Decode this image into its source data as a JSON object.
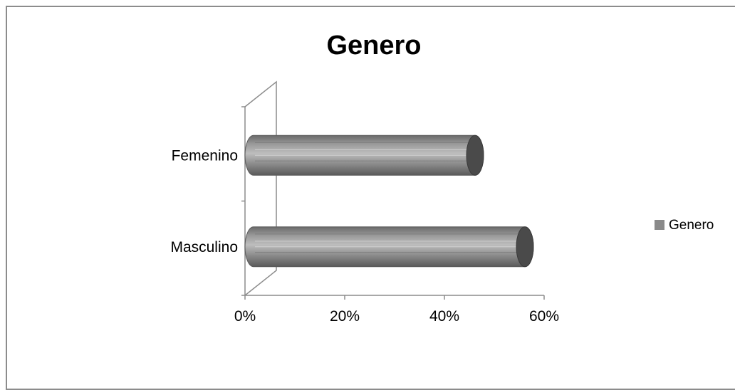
{
  "chart_data": {
    "type": "bar",
    "orientation": "horizontal",
    "style": "3d-cylinder",
    "title": "Genero",
    "categories": [
      "Masculino",
      "Femenino"
    ],
    "series": [
      {
        "name": "Genero",
        "values": [
          0.57,
          0.47
        ],
        "color": "#8a8a8a"
      }
    ],
    "x_ticks": [
      "0%",
      "20%",
      "40%",
      "60%"
    ],
    "xlim": [
      0,
      0.6
    ],
    "xlabel": "",
    "ylabel": "",
    "grid": false,
    "legend_position": "right"
  }
}
